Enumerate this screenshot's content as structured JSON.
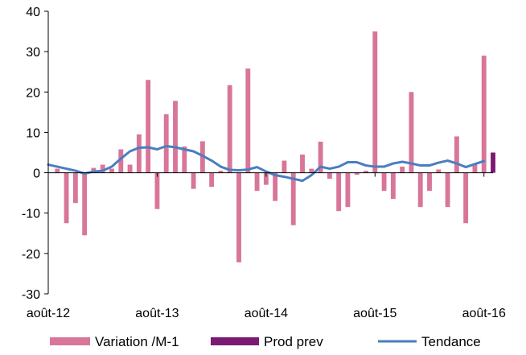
{
  "chart_data": {
    "type": "bar",
    "ylim": [
      -30,
      40
    ],
    "yticks": [
      -30,
      -20,
      -10,
      0,
      10,
      20,
      30,
      40
    ],
    "x_tick_labels": [
      "août-12",
      "août-13",
      "août-14",
      "août-15",
      "août-16"
    ],
    "x_tick_month_index": [
      0,
      12,
      24,
      36,
      48
    ],
    "x_month_range": [
      0,
      49
    ],
    "grid": false,
    "legend_position": "bottom",
    "series": [
      {
        "name": "Variation /M-1",
        "kind": "bar",
        "color": "#d8769a",
        "values": [
          1,
          -12.5,
          -7.5,
          -15.5,
          1.2,
          2,
          1,
          5.8,
          2,
          9.5,
          23,
          -9,
          14.5,
          17.8,
          6.5,
          -4,
          7.8,
          -3.5,
          0.5,
          21.7,
          -22.2,
          25.8,
          -4.5,
          -3,
          -7,
          3,
          -13,
          4.5,
          1,
          7.7,
          -1.5,
          -9.5,
          -8.5,
          -0.5,
          0.5,
          35,
          -4.5,
          -6.5,
          1.5,
          20,
          -8.5,
          -4.5,
          0.8,
          -8.5,
          9,
          -12.5,
          2,
          29
        ],
        "month_index": [
          1,
          2,
          3,
          4,
          5,
          6,
          7,
          8,
          9,
          10,
          11,
          12,
          13,
          14,
          15,
          16,
          17,
          18,
          19,
          20,
          21,
          22,
          23,
          24,
          25,
          26,
          27,
          28,
          29,
          30,
          31,
          32,
          33,
          34,
          35,
          36,
          37,
          38,
          39,
          40,
          41,
          42,
          43,
          44,
          45,
          46,
          47,
          48
        ]
      },
      {
        "name": "Prod prev",
        "kind": "bar",
        "color": "#7b1a73",
        "values": [
          5
        ],
        "month_index": [
          49
        ]
      },
      {
        "name": "Tendance",
        "kind": "line",
        "color": "#4a7ebf",
        "values": [
          2,
          1.5,
          1,
          0.5,
          -0.2,
          0.3,
          0.5,
          1.5,
          3.5,
          5.3,
          6.2,
          6.3,
          5.8,
          6.6,
          6.3,
          5.8,
          5.3,
          4.2,
          3,
          1.5,
          0.7,
          0.6,
          0.8,
          1.4,
          0.3,
          -0.6,
          -1,
          -1.5,
          -2,
          -0.6,
          1.5,
          1,
          1.5,
          2.6,
          2.6,
          1.8,
          1.5,
          1.5,
          2.3,
          2.7,
          2.3,
          1.8,
          1.8,
          2.5,
          3,
          2.3,
          1.4,
          2.9
        ],
        "month_index": [
          0,
          1,
          2,
          3,
          4,
          5,
          6,
          7,
          8,
          9,
          10,
          11,
          12,
          13,
          14,
          15,
          16,
          17,
          18,
          19,
          20,
          21,
          22,
          23,
          24,
          25,
          26,
          27,
          28,
          29,
          30,
          31,
          32,
          33,
          34,
          35,
          36,
          37,
          38,
          39,
          40,
          41,
          42,
          43,
          44,
          45,
          46,
          48
        ]
      }
    ]
  },
  "legend": [
    {
      "label": "Variation /M-1",
      "swatch": "bar",
      "color": "#d8769a"
    },
    {
      "label": "Prod prev",
      "swatch": "bar",
      "color": "#7b1a73"
    },
    {
      "label": "Tendance",
      "swatch": "line",
      "color": "#4a7ebf"
    }
  ]
}
